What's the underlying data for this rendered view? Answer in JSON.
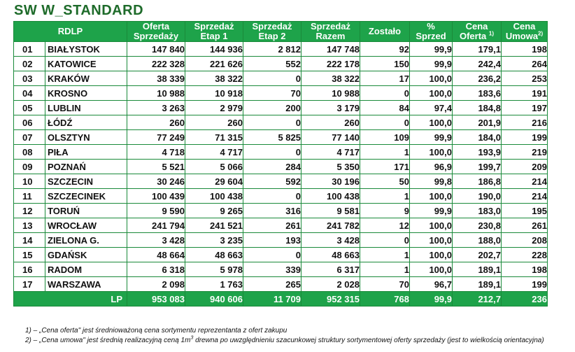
{
  "title": "SW W_STANDARD",
  "headers": {
    "rdlp": "RDLP",
    "oferta_l1": "Oferta",
    "oferta_l2": "Sprzedaży",
    "etap1_l1": "Sprzedaż",
    "etap1_l2": "Etap 1",
    "etap2_l1": "Sprzedaż",
    "etap2_l2": "Etap 2",
    "razem_l1": "Sprzedaż",
    "razem_l2": "Razem",
    "zostalo": "Zostało",
    "proc_l1": "%",
    "proc_l2": "Sprzed",
    "cena_oferta_l1": "Cena",
    "cena_oferta_l2": "Oferta",
    "cena_oferta_sup": "1)",
    "cena_umowa_l1": "Cena",
    "cena_umowa_l2": "Umowa",
    "cena_umowa_sup": "2)"
  },
  "rows": [
    {
      "num": "01",
      "name": "BIAŁYSTOK",
      "oferta": "147 840",
      "etap1": "144 936",
      "etap2": "2 812",
      "razem": "147 748",
      "zostalo": "92",
      "proc": "99,9",
      "cena_oferta": "179,1",
      "cena_umowa": "198"
    },
    {
      "num": "02",
      "name": "KATOWICE",
      "oferta": "222 328",
      "etap1": "221 626",
      "etap2": "552",
      "razem": "222 178",
      "zostalo": "150",
      "proc": "99,9",
      "cena_oferta": "242,4",
      "cena_umowa": "264"
    },
    {
      "num": "03",
      "name": "KRAKÓW",
      "oferta": "38 339",
      "etap1": "38 322",
      "etap2": "0",
      "razem": "38 322",
      "zostalo": "17",
      "proc": "100,0",
      "cena_oferta": "236,2",
      "cena_umowa": "253"
    },
    {
      "num": "04",
      "name": "KROSNO",
      "oferta": "10 988",
      "etap1": "10 918",
      "etap2": "70",
      "razem": "10 988",
      "zostalo": "0",
      "proc": "100,0",
      "cena_oferta": "183,6",
      "cena_umowa": "191"
    },
    {
      "num": "05",
      "name": "LUBLIN",
      "oferta": "3 263",
      "etap1": "2 979",
      "etap2": "200",
      "razem": "3 179",
      "zostalo": "84",
      "proc": "97,4",
      "cena_oferta": "184,8",
      "cena_umowa": "197"
    },
    {
      "num": "06",
      "name": "ŁÓDŹ",
      "oferta": "260",
      "etap1": "260",
      "etap2": "0",
      "razem": "260",
      "zostalo": "0",
      "proc": "100,0",
      "cena_oferta": "201,9",
      "cena_umowa": "216"
    },
    {
      "num": "07",
      "name": "OLSZTYN",
      "oferta": "77 249",
      "etap1": "71 315",
      "etap2": "5 825",
      "razem": "77 140",
      "zostalo": "109",
      "proc": "99,9",
      "cena_oferta": "184,0",
      "cena_umowa": "199"
    },
    {
      "num": "08",
      "name": "PIŁA",
      "oferta": "4 718",
      "etap1": "4 717",
      "etap2": "0",
      "razem": "4 717",
      "zostalo": "1",
      "proc": "100,0",
      "cena_oferta": "193,9",
      "cena_umowa": "219"
    },
    {
      "num": "09",
      "name": "POZNAŃ",
      "oferta": "5 521",
      "etap1": "5 066",
      "etap2": "284",
      "razem": "5 350",
      "zostalo": "171",
      "proc": "96,9",
      "cena_oferta": "199,7",
      "cena_umowa": "209"
    },
    {
      "num": "10",
      "name": "SZCZECIN",
      "oferta": "30 246",
      "etap1": "29 604",
      "etap2": "592",
      "razem": "30 196",
      "zostalo": "50",
      "proc": "99,8",
      "cena_oferta": "186,8",
      "cena_umowa": "214"
    },
    {
      "num": "11",
      "name": "SZCZECINEK",
      "oferta": "100 439",
      "etap1": "100 438",
      "etap2": "0",
      "razem": "100 438",
      "zostalo": "1",
      "proc": "100,0",
      "cena_oferta": "190,0",
      "cena_umowa": "214"
    },
    {
      "num": "12",
      "name": "TORUŃ",
      "oferta": "9 590",
      "etap1": "9 265",
      "etap2": "316",
      "razem": "9 581",
      "zostalo": "9",
      "proc": "99,9",
      "cena_oferta": "183,0",
      "cena_umowa": "195"
    },
    {
      "num": "13",
      "name": "WROCŁAW",
      "oferta": "241 794",
      "etap1": "241 521",
      "etap2": "261",
      "razem": "241 782",
      "zostalo": "12",
      "proc": "100,0",
      "cena_oferta": "230,8",
      "cena_umowa": "261"
    },
    {
      "num": "14",
      "name": "ZIELONA G.",
      "oferta": "3 428",
      "etap1": "3 235",
      "etap2": "193",
      "razem": "3 428",
      "zostalo": "0",
      "proc": "100,0",
      "cena_oferta": "188,0",
      "cena_umowa": "208"
    },
    {
      "num": "15",
      "name": "GDAŃSK",
      "oferta": "48 664",
      "etap1": "48 663",
      "etap2": "0",
      "razem": "48 663",
      "zostalo": "1",
      "proc": "100,0",
      "cena_oferta": "202,7",
      "cena_umowa": "228"
    },
    {
      "num": "16",
      "name": "RADOM",
      "oferta": "6 318",
      "etap1": "5 978",
      "etap2": "339",
      "razem": "6 317",
      "zostalo": "1",
      "proc": "100,0",
      "cena_oferta": "189,1",
      "cena_umowa": "198"
    },
    {
      "num": "17",
      "name": "WARSZAWA",
      "oferta": "2 098",
      "etap1": "1 763",
      "etap2": "265",
      "razem": "2 028",
      "zostalo": "70",
      "proc": "96,7",
      "cena_oferta": "189,1",
      "cena_umowa": "199"
    }
  ],
  "total": {
    "label": "LP",
    "oferta": "953 083",
    "etap1": "940 606",
    "etap2": "11 709",
    "razem": "952 315",
    "zostalo": "768",
    "proc": "99,9",
    "cena_oferta": "212,7",
    "cena_umowa": "236"
  },
  "notes": {
    "note1": "1) – „Cena oferta\" jest średnioważoną cena sortymentu reprezentanta z ofert zakupu",
    "note2_a": "2) – „Cena umowa\" jest średnią realizacyjną ceną 1m",
    "note2_sup": "3",
    "note2_b": " drewna po uwzględnieniu szacunkowej struktury sortymentowej oferty sprzedaży (jest  to wielkością orientacyjna)"
  }
}
